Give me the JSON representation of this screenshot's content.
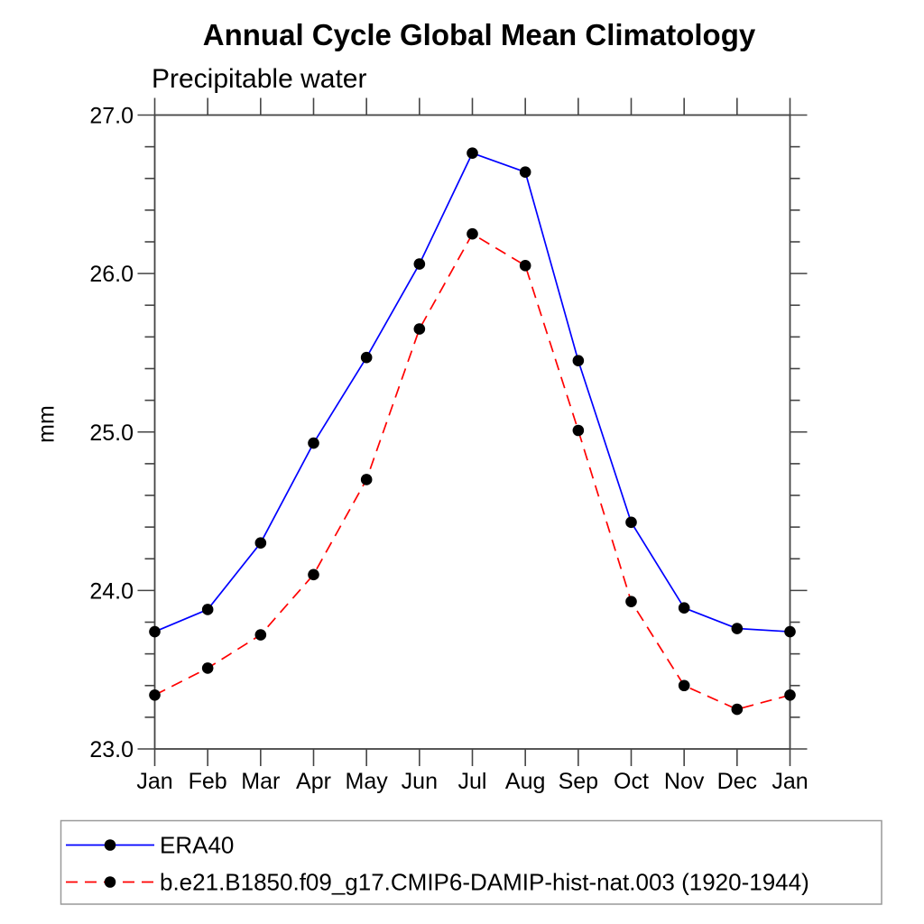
{
  "chart_data": {
    "type": "line",
    "title": "Annual Cycle Global Mean Climatology",
    "subtitle": "Precipitable water",
    "xlabel": "",
    "ylabel": "mm",
    "categories": [
      "Jan",
      "Feb",
      "Mar",
      "Apr",
      "May",
      "Jun",
      "Jul",
      "Aug",
      "Sep",
      "Oct",
      "Nov",
      "Dec",
      "Jan"
    ],
    "ylim": [
      23.0,
      27.0
    ],
    "ytick_major_labels": [
      "23.0",
      "24.0",
      "25.0",
      "26.0",
      "27.0"
    ],
    "ytick_major_values": [
      23.0,
      24.0,
      25.0,
      26.0,
      27.0
    ],
    "ytick_minor_step": 0.2,
    "grid": false,
    "legend_position": "bottom",
    "frame_color": "#444444",
    "marker_color": "#000000",
    "series": [
      {
        "name": "ERA40",
        "color": "#0000ff",
        "style": "solid",
        "marker": "filled-circle",
        "values": [
          23.74,
          23.88,
          24.3,
          24.93,
          25.47,
          26.06,
          26.76,
          26.64,
          25.45,
          24.43,
          23.89,
          23.76,
          23.74
        ]
      },
      {
        "name": "b.e21.B1850.f09_g17.CMIP6-DAMIP-hist-nat.003 (1920-1944)",
        "color": "#ff0000",
        "style": "dashed",
        "marker": "filled-circle",
        "values": [
          23.34,
          23.51,
          23.72,
          24.1,
          24.7,
          25.65,
          26.25,
          26.05,
          25.01,
          23.93,
          23.4,
          23.25,
          23.34
        ]
      }
    ]
  }
}
